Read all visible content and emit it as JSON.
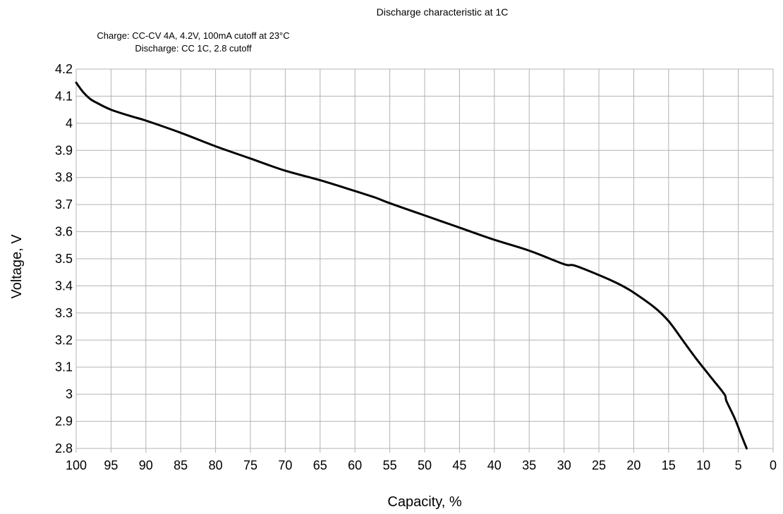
{
  "chart_data": {
    "type": "line",
    "title": "Discharge characteristic at 1C",
    "subtitle_lines": [
      "Charge: CC-CV 4A, 4.2V, 100mA cutoff at 23°C",
      "Discharge: CC 1C, 2.8 cutoff"
    ],
    "xlabel": "Capacity, %",
    "ylabel": "Voltage, V",
    "xlim": [
      100,
      0
    ],
    "ylim": [
      2.8,
      4.2
    ],
    "x_ticks": [
      100,
      95,
      90,
      85,
      80,
      75,
      70,
      65,
      60,
      55,
      50,
      45,
      40,
      35,
      30,
      25,
      20,
      15,
      10,
      5,
      0
    ],
    "x_tick_labels": [
      "100",
      "95",
      "90",
      "85",
      "80",
      "75",
      "70",
      "65",
      "60",
      "55",
      "50",
      "45",
      "40",
      "35",
      "30",
      "25",
      "20",
      "15",
      "10",
      "5",
      "0"
    ],
    "y_ticks": [
      2.8,
      2.9,
      3.0,
      3.1,
      3.2,
      3.3,
      3.4,
      3.5,
      3.6,
      3.7,
      3.8,
      3.9,
      4.0,
      4.1,
      4.2
    ],
    "y_tick_labels": [
      "2.8",
      "2.9",
      "3",
      "3.1",
      "3.2",
      "3.3",
      "3.4",
      "3.5",
      "3.6",
      "3.7",
      "3.8",
      "3.9",
      "4",
      "4.1",
      "4.2"
    ],
    "grid": true,
    "legend": "none",
    "series": [
      {
        "color": "#000000",
        "x": [
          100,
          99,
          98,
          97,
          95,
          92,
          90,
          85,
          80,
          75,
          70,
          65,
          60,
          57,
          55,
          50,
          45,
          40,
          35,
          30,
          28.5,
          25,
          22,
          20,
          17,
          15,
          13,
          11,
          9,
          7,
          6.7,
          5.5,
          4.5,
          3.8
        ],
        "y": [
          4.15,
          4.115,
          4.09,
          4.075,
          4.05,
          4.025,
          4.01,
          3.965,
          3.915,
          3.87,
          3.825,
          3.79,
          3.75,
          3.725,
          3.705,
          3.66,
          3.615,
          3.57,
          3.53,
          3.48,
          3.475,
          3.44,
          3.405,
          3.375,
          3.32,
          3.27,
          3.2,
          3.13,
          3.065,
          3.0,
          2.975,
          2.91,
          2.845,
          2.8
        ]
      }
    ]
  }
}
